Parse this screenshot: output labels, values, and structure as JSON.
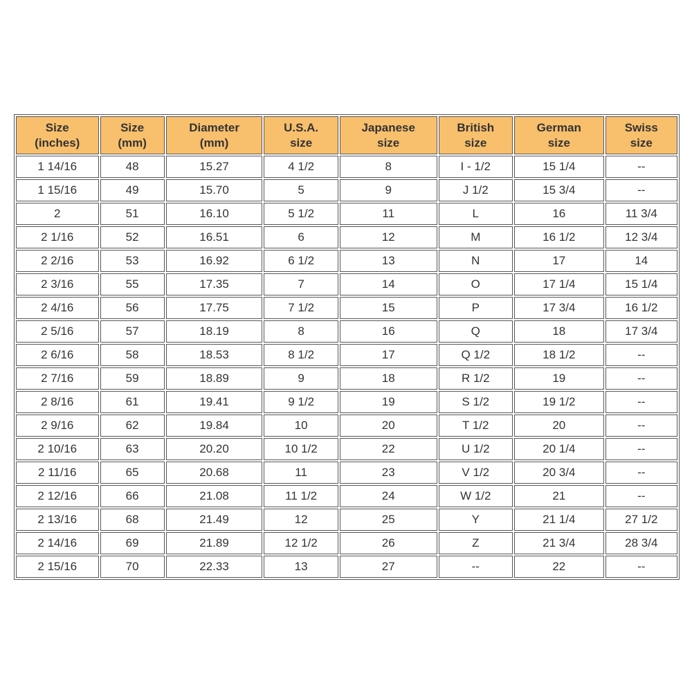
{
  "table": {
    "headers": [
      "Size\n(inches)",
      "Size\n(mm)",
      "Diameter\n(mm)",
      "U.S.A.\nsize",
      "Japanese\nsize",
      "British\nsize",
      "German\nsize",
      "Swiss\nsize"
    ],
    "rows": [
      [
        "1 14/16",
        "48",
        "15.27",
        "4 1/2",
        "8",
        "I - 1/2",
        "15 1/4",
        "--"
      ],
      [
        "1 15/16",
        "49",
        "15.70",
        "5",
        "9",
        "J 1/2",
        "15 3/4",
        "--"
      ],
      [
        "2",
        "51",
        "16.10",
        "5 1/2",
        "11",
        "L",
        "16",
        "11 3/4"
      ],
      [
        "2 1/16",
        "52",
        "16.51",
        "6",
        "12",
        "M",
        "16 1/2",
        "12 3/4"
      ],
      [
        "2 2/16",
        "53",
        "16.92",
        "6 1/2",
        "13",
        "N",
        "17",
        "14"
      ],
      [
        "2 3/16",
        "55",
        "17.35",
        "7",
        "14",
        "O",
        "17 1/4",
        "15 1/4"
      ],
      [
        "2 4/16",
        "56",
        "17.75",
        "7 1/2",
        "15",
        "P",
        "17 3/4",
        "16 1/2"
      ],
      [
        "2 5/16",
        "57",
        "18.19",
        "8",
        "16",
        "Q",
        "18",
        "17 3/4"
      ],
      [
        "2 6/16",
        "58",
        "18.53",
        "8 1/2",
        "17",
        "Q 1/2",
        "18 1/2",
        "--"
      ],
      [
        "2 7/16",
        "59",
        "18.89",
        "9",
        "18",
        "R 1/2",
        "19",
        "--"
      ],
      [
        "2 8/16",
        "61",
        "19.41",
        "9 1/2",
        "19",
        "S 1/2",
        "19 1/2",
        "--"
      ],
      [
        "2 9/16",
        "62",
        "19.84",
        "10",
        "20",
        "T 1/2",
        "20",
        "--"
      ],
      [
        "2 10/16",
        "63",
        "20.20",
        "10 1/2",
        "22",
        "U 1/2",
        "20 1/4",
        "--"
      ],
      [
        "2 11/16",
        "65",
        "20.68",
        "11",
        "23",
        "V 1/2",
        "20 3/4",
        "--"
      ],
      [
        "2 12/16",
        "66",
        "21.08",
        "11 1/2",
        "24",
        "W 1/2",
        "21",
        "--"
      ],
      [
        "2 13/16",
        "68",
        "21.49",
        "12",
        "25",
        "Y",
        "21 1/4",
        "27 1/2"
      ],
      [
        "2 14/16",
        "69",
        "21.89",
        "12 1/2",
        "26",
        "Z",
        "21 3/4",
        "28 3/4"
      ],
      [
        "2 15/16",
        "70",
        "22.33",
        "13",
        "27",
        "--",
        "22",
        "--"
      ]
    ]
  }
}
